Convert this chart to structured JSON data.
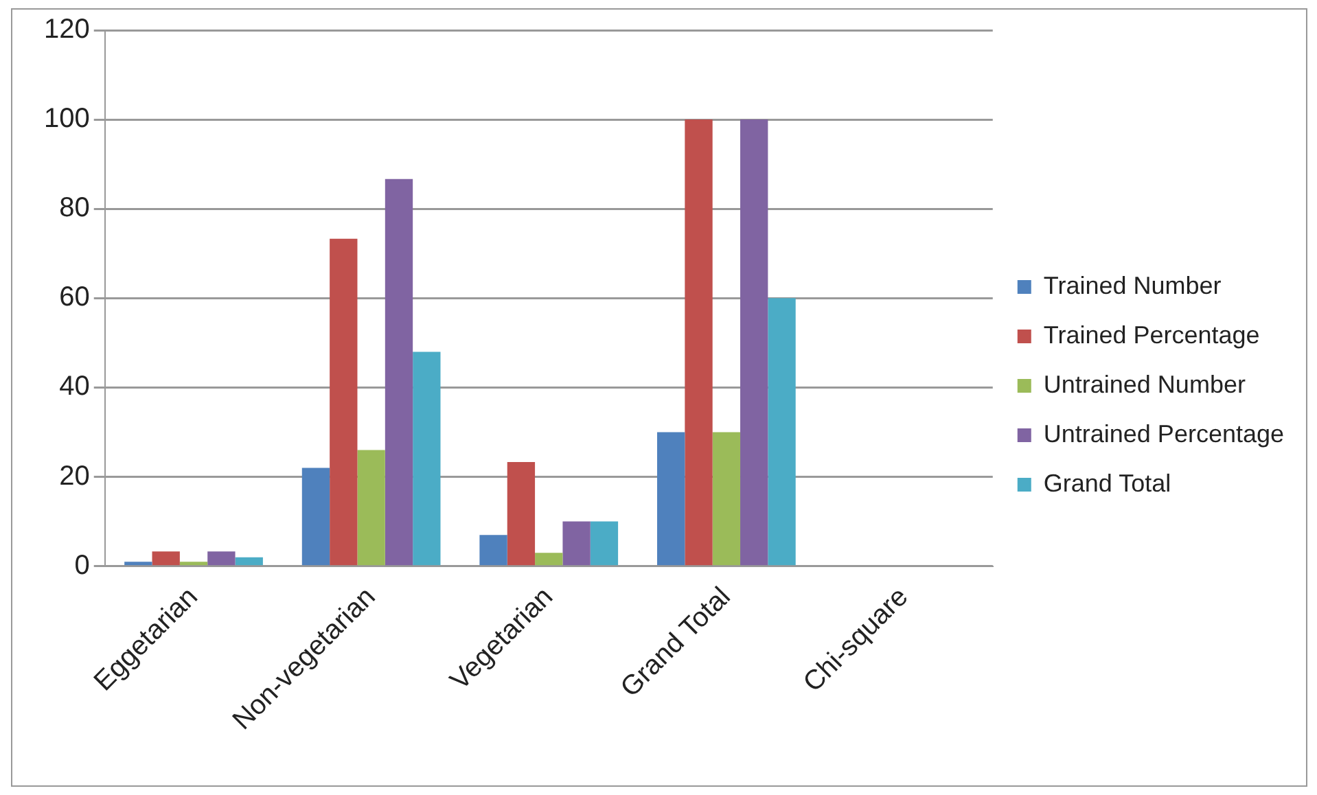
{
  "chart_data": {
    "type": "bar",
    "categories": [
      "Eggetarian",
      "Non-vegetarian",
      "Vegetarian",
      "Grand Total",
      "Chi-square"
    ],
    "series": [
      {
        "name": "Trained Number",
        "color": "#4f81bd",
        "values": [
          1,
          22,
          7,
          30,
          null
        ]
      },
      {
        "name": "Trained Percentage",
        "color": "#c0504d",
        "values": [
          3.3,
          73.3,
          23.3,
          100,
          null
        ]
      },
      {
        "name": "Untrained Number",
        "color": "#9bbb59",
        "values": [
          1,
          26,
          3,
          30,
          null
        ]
      },
      {
        "name": "Untrained Percentage",
        "color": "#8064a2",
        "values": [
          3.3,
          86.7,
          10,
          100,
          null
        ]
      },
      {
        "name": "Grand Total",
        "color": "#4bacc6",
        "values": [
          2,
          48,
          10,
          60,
          null
        ]
      }
    ],
    "ylim": [
      0,
      120
    ],
    "yticks": [
      0,
      20,
      40,
      60,
      80,
      100,
      120
    ],
    "grid": "y",
    "legend": "right"
  }
}
